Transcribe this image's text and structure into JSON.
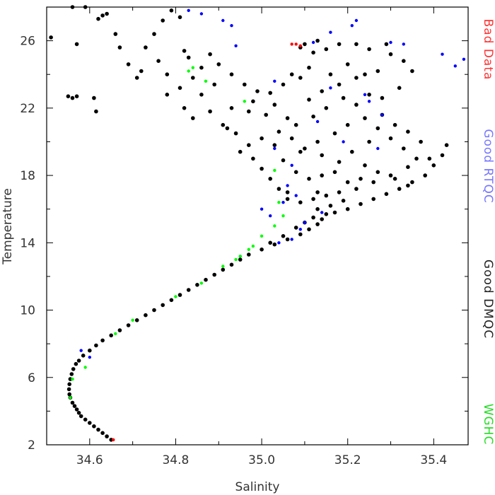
{
  "chart_data": {
    "type": "scatter",
    "title": "",
    "xlabel": "Salinity",
    "ylabel": "Temperature",
    "xlim": [
      34.5,
      35.48
    ],
    "ylim": [
      2,
      28
    ],
    "x_ticks": [
      "34.6",
      "34.8",
      "35.0",
      "35.2",
      "35.4"
    ],
    "y_ticks": [
      "2",
      "6",
      "10",
      "14",
      "18",
      "22",
      "26"
    ],
    "grid": false,
    "legend_position": "right-vertical",
    "legend": [
      {
        "label": "Bad Data",
        "color": "#ff3333"
      },
      {
        "label": "Good RTQC",
        "color": "#7777ff"
      },
      {
        "label": "Good DMQC",
        "color": "#222222"
      },
      {
        "label": "WGHC",
        "color": "#22dd22"
      }
    ],
    "series": [
      {
        "name": "Good DMQC",
        "color": "#000000",
        "points": [
          [
            34.65,
            2.3
          ],
          [
            34.64,
            2.5
          ],
          [
            34.63,
            2.7
          ],
          [
            34.62,
            2.9
          ],
          [
            34.61,
            3.1
          ],
          [
            34.6,
            3.3
          ],
          [
            34.59,
            3.5
          ],
          [
            34.58,
            3.7
          ],
          [
            34.575,
            3.9
          ],
          [
            34.57,
            4.1
          ],
          [
            34.565,
            4.3
          ],
          [
            34.56,
            4.5
          ],
          [
            34.555,
            4.8
          ],
          [
            34.553,
            5.0
          ],
          [
            34.552,
            5.3
          ],
          [
            34.553,
            5.6
          ],
          [
            34.555,
            5.9
          ],
          [
            34.558,
            6.2
          ],
          [
            34.562,
            6.5
          ],
          [
            34.568,
            6.8
          ],
          [
            34.575,
            7.0
          ],
          [
            34.585,
            7.3
          ],
          [
            34.6,
            7.6
          ],
          [
            34.615,
            7.9
          ],
          [
            34.63,
            8.2
          ],
          [
            34.65,
            8.5
          ],
          [
            34.67,
            8.8
          ],
          [
            34.69,
            9.1
          ],
          [
            34.71,
            9.4
          ],
          [
            34.73,
            9.7
          ],
          [
            34.75,
            10.0
          ],
          [
            34.77,
            10.3
          ],
          [
            34.79,
            10.6
          ],
          [
            34.81,
            10.9
          ],
          [
            34.83,
            11.2
          ],
          [
            34.85,
            11.5
          ],
          [
            34.87,
            11.8
          ],
          [
            34.89,
            12.1
          ],
          [
            34.91,
            12.4
          ],
          [
            34.93,
            12.7
          ],
          [
            34.95,
            13.0
          ],
          [
            34.97,
            13.3
          ],
          [
            35.0,
            13.6
          ],
          [
            35.03,
            13.9
          ],
          [
            35.06,
            14.2
          ],
          [
            35.09,
            14.5
          ],
          [
            35.11,
            14.8
          ],
          [
            35.13,
            15.1
          ],
          [
            35.14,
            15.4
          ],
          [
            35.15,
            15.7
          ],
          [
            35.13,
            16.0
          ],
          [
            35.12,
            15.5
          ],
          [
            35.1,
            15.2
          ],
          [
            35.08,
            14.9
          ],
          [
            35.05,
            14.4
          ],
          [
            35.02,
            14.0
          ],
          [
            35.17,
            15.8
          ],
          [
            35.2,
            16.0
          ],
          [
            35.23,
            16.3
          ],
          [
            35.26,
            16.6
          ],
          [
            35.29,
            16.9
          ],
          [
            35.32,
            17.2
          ],
          [
            35.35,
            17.6
          ],
          [
            35.38,
            18.0
          ],
          [
            35.4,
            18.6
          ],
          [
            35.42,
            19.2
          ],
          [
            35.43,
            19.8
          ],
          [
            35.39,
            19.0
          ],
          [
            35.34,
            18.5
          ],
          [
            35.3,
            18.0
          ],
          [
            35.26,
            17.6
          ],
          [
            35.22,
            17.2
          ],
          [
            35.18,
            17.0
          ],
          [
            35.15,
            16.8
          ],
          [
            35.12,
            16.6
          ],
          [
            35.09,
            16.4
          ],
          [
            35.06,
            16.6
          ],
          [
            35.04,
            17.2
          ],
          [
            35.02,
            17.8
          ],
          [
            35.0,
            18.4
          ],
          [
            35.05,
            18.9
          ],
          [
            35.09,
            19.4
          ],
          [
            35.13,
            20.0
          ],
          [
            35.17,
            20.5
          ],
          [
            35.2,
            21.0
          ],
          [
            35.24,
            21.4
          ],
          [
            35.27,
            20.8
          ],
          [
            35.3,
            20.2
          ],
          [
            35.33,
            19.6
          ],
          [
            35.36,
            19.0
          ],
          [
            35.22,
            22.2
          ],
          [
            35.25,
            22.8
          ],
          [
            35.19,
            22.6
          ],
          [
            35.15,
            22.0
          ],
          [
            35.12,
            21.5
          ],
          [
            35.08,
            21.0
          ],
          [
            35.04,
            20.6
          ],
          [
            35.0,
            20.2
          ],
          [
            34.97,
            19.8
          ],
          [
            34.94,
            20.5
          ],
          [
            34.91,
            21.0
          ],
          [
            34.88,
            21.8
          ],
          [
            34.93,
            22.0
          ],
          [
            34.97,
            21.8
          ],
          [
            35.01,
            21.6
          ],
          [
            35.06,
            21.4
          ],
          [
            35.11,
            22.5
          ],
          [
            35.14,
            23.0
          ],
          [
            35.18,
            23.4
          ],
          [
            35.22,
            23.8
          ],
          [
            35.27,
            24.2
          ],
          [
            35.25,
            25.5
          ],
          [
            35.22,
            25.8
          ],
          [
            35.18,
            25.8
          ],
          [
            35.15,
            25.5
          ],
          [
            35.13,
            26.0
          ],
          [
            35.1,
            25.8
          ],
          [
            35.09,
            25.6
          ],
          [
            35.12,
            25.3
          ],
          [
            35.29,
            25.8
          ],
          [
            35.3,
            25.2
          ],
          [
            35.33,
            24.8
          ],
          [
            35.35,
            24.2
          ],
          [
            35.32,
            23.2
          ],
          [
            35.28,
            22.6
          ],
          [
            35.09,
            23.8
          ],
          [
            35.05,
            23.4
          ],
          [
            35.02,
            22.9
          ],
          [
            34.99,
            23.0
          ],
          [
            34.96,
            23.4
          ],
          [
            34.93,
            24.0
          ],
          [
            34.9,
            24.6
          ],
          [
            34.88,
            25.2
          ],
          [
            34.86,
            24.4
          ],
          [
            34.83,
            25.0
          ],
          [
            34.82,
            25.4
          ],
          [
            34.84,
            23.8
          ],
          [
            34.81,
            23.2
          ],
          [
            34.78,
            24.0
          ],
          [
            34.76,
            24.8
          ],
          [
            34.73,
            25.6
          ],
          [
            34.75,
            26.4
          ],
          [
            34.77,
            27.2
          ],
          [
            34.79,
            27.8
          ],
          [
            34.81,
            27.4
          ],
          [
            34.72,
            24.2
          ],
          [
            34.71,
            23.8
          ],
          [
            34.69,
            24.6
          ],
          [
            34.67,
            25.6
          ],
          [
            34.66,
            26.4
          ],
          [
            34.64,
            27.6
          ],
          [
            34.63,
            27.5
          ],
          [
            34.62,
            27.3
          ],
          [
            34.59,
            28.0
          ],
          [
            34.56,
            28.0
          ],
          [
            34.57,
            25.8
          ],
          [
            34.55,
            22.7
          ],
          [
            34.56,
            22.6
          ],
          [
            34.57,
            22.7
          ],
          [
            34.61,
            22.6
          ],
          [
            34.615,
            21.8
          ],
          [
            34.51,
            26.2
          ],
          [
            34.78,
            22.8
          ],
          [
            34.82,
            22.0
          ],
          [
            34.84,
            21.4
          ],
          [
            34.86,
            22.8
          ],
          [
            34.89,
            23.4
          ],
          [
            34.92,
            20.8
          ],
          [
            34.95,
            19.4
          ],
          [
            34.98,
            19.0
          ],
          [
            35.03,
            19.8
          ],
          [
            35.07,
            20.2
          ],
          [
            35.1,
            19.6
          ],
          [
            35.14,
            19.2
          ],
          [
            35.18,
            18.8
          ],
          [
            35.21,
            19.4
          ],
          [
            35.24,
            18.6
          ],
          [
            35.27,
            18.2
          ],
          [
            35.31,
            17.8
          ],
          [
            35.34,
            17.4
          ],
          [
            35.08,
            18.2
          ],
          [
            35.11,
            17.8
          ],
          [
            35.14,
            18.0
          ],
          [
            35.17,
            18.2
          ],
          [
            35.2,
            17.6
          ],
          [
            35.23,
            17.8
          ],
          [
            35.06,
            17.0
          ],
          [
            35.16,
            16.2
          ],
          [
            35.19,
            16.5
          ],
          [
            35.13,
            17.0
          ],
          [
            35.25,
            20.0
          ],
          [
            35.28,
            21.6
          ],
          [
            35.31,
            21.0
          ],
          [
            35.34,
            20.6
          ],
          [
            35.37,
            20.0
          ],
          [
            35.16,
            24.0
          ],
          [
            35.2,
            24.6
          ],
          [
            35.24,
            24.0
          ],
          [
            34.98,
            22.4
          ],
          [
            35.03,
            22.2
          ],
          [
            35.07,
            24.0
          ],
          [
            35.11,
            24.4
          ]
        ]
      },
      {
        "name": "Good RTQC",
        "color": "#0000ff",
        "points": [
          [
            34.58,
            7.6
          ],
          [
            34.6,
            7.2
          ],
          [
            34.83,
            27.8
          ],
          [
            34.86,
            27.6
          ],
          [
            34.91,
            27.2
          ],
          [
            34.93,
            26.9
          ],
          [
            35.22,
            27.2
          ],
          [
            35.21,
            26.9
          ],
          [
            35.16,
            26.5
          ],
          [
            34.94,
            25.7
          ],
          [
            35.3,
            25.9
          ],
          [
            35.33,
            25.8
          ],
          [
            35.42,
            25.2
          ],
          [
            35.45,
            24.5
          ],
          [
            35.47,
            24.9
          ],
          [
            35.12,
            25.9
          ],
          [
            35.03,
            23.6
          ],
          [
            35.25,
            22.4
          ],
          [
            35.24,
            22.8
          ],
          [
            35.13,
            21.2
          ],
          [
            35.19,
            20.0
          ],
          [
            35.27,
            19.6
          ],
          [
            35.28,
            21.6
          ],
          [
            35.03,
            19.6
          ],
          [
            35.07,
            18.6
          ],
          [
            35.06,
            17.4
          ],
          [
            35.08,
            16.8
          ],
          [
            35.05,
            16.4
          ],
          [
            35.14,
            15.8
          ],
          [
            35.02,
            15.6
          ],
          [
            35.09,
            14.8
          ],
          [
            35.07,
            14.2
          ],
          [
            35.04,
            14.0
          ],
          [
            34.95,
            13.2
          ],
          [
            35.1,
            15.2
          ],
          [
            35.0,
            16.0
          ],
          [
            35.16,
            23.2
          ]
        ]
      },
      {
        "name": "WGHC",
        "color": "#00ff00",
        "points": [
          [
            34.555,
            4.8
          ],
          [
            34.56,
            5.9
          ],
          [
            34.59,
            6.6
          ],
          [
            34.66,
            8.6
          ],
          [
            34.7,
            9.4
          ],
          [
            34.8,
            10.8
          ],
          [
            34.86,
            11.6
          ],
          [
            34.91,
            12.6
          ],
          [
            34.95,
            13.2
          ],
          [
            34.97,
            13.6
          ],
          [
            35.0,
            14.4
          ],
          [
            35.03,
            15.0
          ],
          [
            35.04,
            16.4
          ],
          [
            35.05,
            15.6
          ],
          [
            34.83,
            24.2
          ],
          [
            34.84,
            24.4
          ],
          [
            34.87,
            23.6
          ],
          [
            34.96,
            22.4
          ],
          [
            35.03,
            18.3
          ],
          [
            34.94,
            13.0
          ],
          [
            34.98,
            13.8
          ]
        ]
      },
      {
        "name": "Bad Data",
        "color": "#ff0000",
        "points": [
          [
            35.07,
            25.8
          ],
          [
            35.08,
            25.8
          ],
          [
            35.09,
            25.7
          ],
          [
            34.655,
            2.3
          ]
        ]
      }
    ]
  }
}
